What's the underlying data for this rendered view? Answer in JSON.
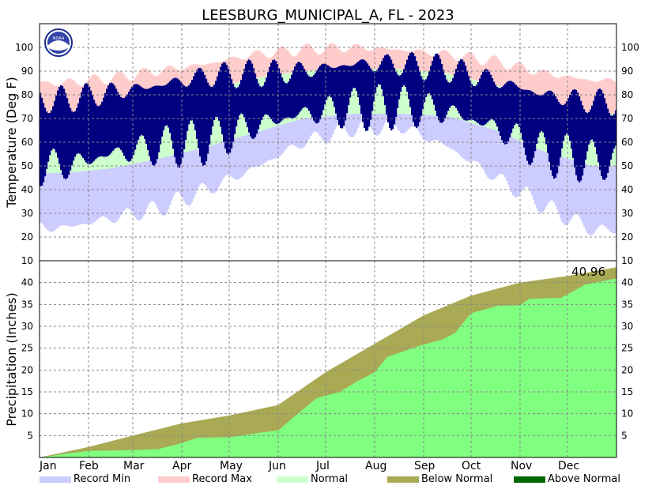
{
  "title": "LEESBURG_MUNICIPAL_A, FL - 2023",
  "logo_text": "NOAA",
  "colors": {
    "record_min": "#ccccff",
    "record_max": "#ffcccc",
    "normal": "#ccffcc",
    "observed": "#000080",
    "below_normal": "#aaaa55",
    "above_normal": "#006600",
    "actual_precip": "#80ff80",
    "grid": "#888888"
  },
  "chart_data": [
    {
      "type": "bar",
      "name": "temperature",
      "ylabel": "Temperature (Deg F)",
      "ylim": [
        10,
        110
      ],
      "yticks": [
        10,
        20,
        30,
        40,
        50,
        60,
        70,
        80,
        90,
        100
      ],
      "grid": true,
      "months": [
        "Jan",
        "Feb",
        "Mar",
        "Apr",
        "May",
        "Jun",
        "Jul",
        "Aug",
        "Sep",
        "Oct",
        "Nov",
        "Dec"
      ],
      "monthly_values": {
        "record_min": [
          24,
          28,
          32,
          40,
          49,
          60,
          66,
          67,
          58,
          45,
          33,
          23
        ],
        "normal_low": [
          47,
          49,
          53,
          58,
          64,
          70,
          72,
          72,
          71,
          65,
          56,
          50
        ],
        "normal_high": [
          70,
          73,
          77,
          82,
          87,
          90,
          91,
          91,
          89,
          84,
          77,
          72
        ],
        "record_max": [
          85,
          87,
          90,
          93,
          97,
          99,
          100,
          99,
          97,
          94,
          89,
          86
        ],
        "observed_low": [
          50,
          55,
          58,
          60,
          67,
          72,
          74,
          75,
          73,
          66,
          55,
          52
        ],
        "observed_high": [
          78,
          81,
          84,
          88,
          89,
          90,
          93,
          93,
          91,
          86,
          80,
          77
        ]
      }
    },
    {
      "type": "area",
      "name": "precipitation",
      "ylabel": "Precipitation (Inches)",
      "ylim": [
        0,
        45
      ],
      "yticks": [
        5,
        10,
        15,
        20,
        25,
        30,
        35,
        40
      ],
      "grid": true,
      "months": [
        "Jan",
        "Feb",
        "Mar",
        "Apr",
        "May",
        "Jun",
        "Jul",
        "Aug",
        "Sep",
        "Oct",
        "Nov",
        "Dec"
      ],
      "total_label": "40.96",
      "normal_cumulative": [
        [
          0,
          0
        ],
        [
          31,
          2.4
        ],
        [
          59,
          5.0
        ],
        [
          90,
          7.8
        ],
        [
          120,
          9.6
        ],
        [
          151,
          12.0
        ],
        [
          181,
          19.5
        ],
        [
          212,
          26.0
        ],
        [
          243,
          32.5
        ],
        [
          273,
          37.0
        ],
        [
          304,
          40.0
        ],
        [
          334,
          41.5
        ],
        [
          365,
          43.5
        ]
      ],
      "actual_cumulative": [
        [
          0,
          0
        ],
        [
          20,
          1.0
        ],
        [
          31,
          1.5
        ],
        [
          50,
          1.6
        ],
        [
          59,
          1.7
        ],
        [
          75,
          1.9
        ],
        [
          90,
          3.3
        ],
        [
          100,
          4.5
        ],
        [
          120,
          4.6
        ],
        [
          140,
          5.7
        ],
        [
          151,
          6.2
        ],
        [
          160,
          9.0
        ],
        [
          175,
          13.5
        ],
        [
          190,
          15.0
        ],
        [
          200,
          17.2
        ],
        [
          212,
          19.5
        ],
        [
          220,
          23.0
        ],
        [
          240,
          25.5
        ],
        [
          255,
          27.0
        ],
        [
          263,
          28.5
        ],
        [
          273,
          33.0
        ],
        [
          290,
          34.7
        ],
        [
          304,
          34.8
        ],
        [
          310,
          36.3
        ],
        [
          330,
          36.5
        ],
        [
          345,
          39.5
        ],
        [
          365,
          40.96
        ]
      ]
    }
  ],
  "legend": [
    {
      "label": "Record Min",
      "color": "#ccccff"
    },
    {
      "label": "Record Max",
      "color": "#ffcccc"
    },
    {
      "label": "Normal",
      "color": "#ccffcc"
    },
    {
      "label": "Below Normal",
      "color": "#aaaa55"
    },
    {
      "label": "Above Normal",
      "color": "#006600"
    }
  ]
}
